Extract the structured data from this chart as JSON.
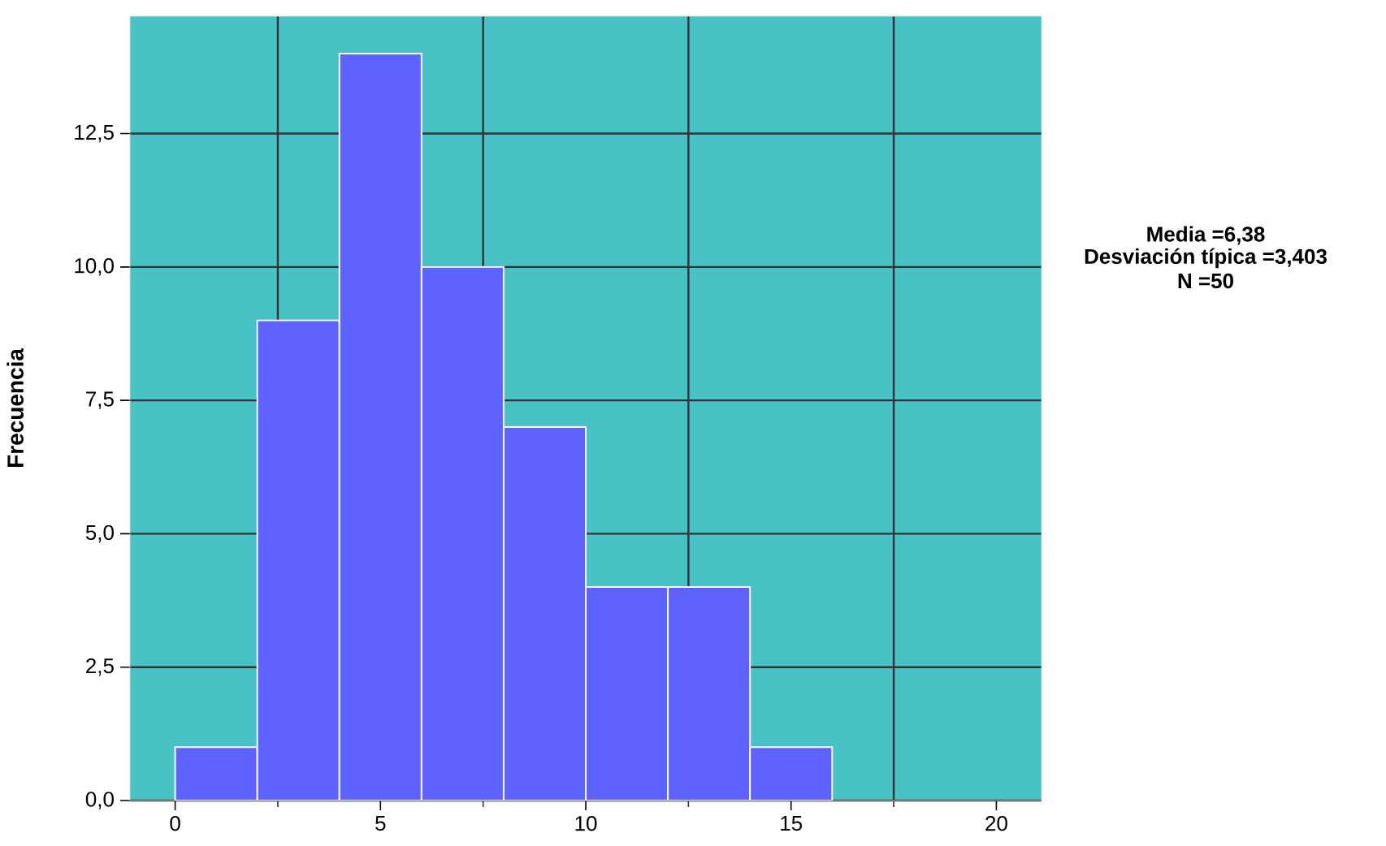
{
  "chart_data": {
    "type": "histogram",
    "ylabel": "Frecuencia",
    "bins": [
      0,
      2,
      4,
      6,
      8,
      10,
      12,
      14,
      16
    ],
    "values": [
      1,
      9,
      14,
      10,
      7,
      4,
      4,
      1
    ],
    "color": "#5e62ff",
    "xlim": [
      -1.1,
      21.1
    ],
    "xticks": [
      0,
      5,
      10,
      15,
      20,
      {
        "value": 2.5,
        "label": null
      },
      {
        "value": 7.5,
        "label": null
      },
      {
        "value": 12.5,
        "label": null
      },
      {
        "value": 17.5,
        "label": null
      }
    ],
    "ylim": [
      0,
      14.7
    ],
    "yticks": [
      {
        "value": 0,
        "label": "0,0"
      },
      {
        "value": 2.5,
        "label": "2,5"
      },
      {
        "value": 5,
        "label": "5,0"
      },
      {
        "value": 7.5,
        "label": "7,5"
      },
      {
        "value": 10,
        "label": "10,0"
      },
      {
        "value": 12.5,
        "label": "12,5"
      }
    ],
    "grid": true,
    "annotations": [
      "Media =6,38",
      "Desviación típica =3,403",
      "N =50"
    ]
  }
}
